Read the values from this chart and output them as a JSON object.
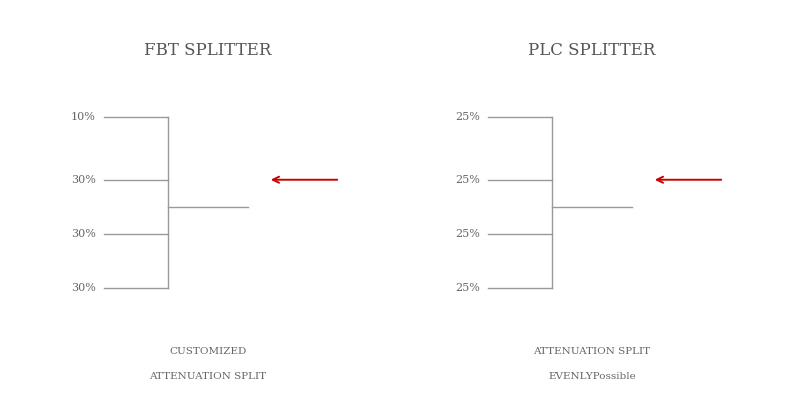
{
  "title_left": "FBT SPLITTER",
  "title_right": "PLC SPLITTER",
  "fbt_labels": [
    "10%",
    "30%",
    "30%",
    "30%"
  ],
  "plc_labels": [
    "25%",
    "25%",
    "25%",
    "25%"
  ],
  "caption_left_line1": "CUSTOMIZED",
  "caption_left_line2": "ATTENUATION SPLIT",
  "caption_right_line1": "ATTENUATION SPLIT",
  "caption_right_line2": "EVENLYPossible",
  "bg_color": "#ffffff",
  "line_color": "#999999",
  "arrow_color": "#cc0000",
  "text_color": "#666666",
  "title_color": "#555555",
  "fig_width": 8.0,
  "fig_height": 4.18,
  "fig_dpi": 100
}
